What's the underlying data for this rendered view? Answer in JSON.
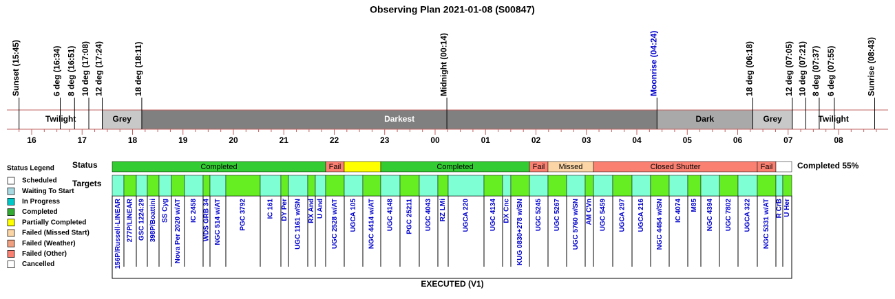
{
  "header": {
    "title": "Observing Plan 2021-01-08 (S00847)"
  },
  "events": [
    {
      "label": "Sunset (15:45)"
    },
    {
      "label": "6 deg (16:34)"
    },
    {
      "label": "8 deg (16:51)"
    },
    {
      "label": "10 deg (17:08)"
    },
    {
      "label": "12 deg (17:24)"
    },
    {
      "label": "18 deg (18:11)"
    },
    {
      "label": "Midnight (00:14)"
    },
    {
      "label": "Moonrise (04:24)",
      "color": "#0000cc"
    },
    {
      "label": "18 deg (06:18)"
    },
    {
      "label": "12 deg (07:05)"
    },
    {
      "label": "10 deg (07:21)"
    },
    {
      "label": "8 deg (07:37)"
    },
    {
      "label": "6 deg (07:55)"
    },
    {
      "label": "Sunrise (08:43)"
    }
  ],
  "phases": [
    {
      "label": "Twilight",
      "color": "#ffffff",
      "text_color": "#000000"
    },
    {
      "label": "Grey",
      "color": "#c8c8c8",
      "text_color": "#000000"
    },
    {
      "label": "Darkest",
      "color": "#808080",
      "text_color": "#ffffff"
    },
    {
      "label": "Dark",
      "color": "#a9a9a9",
      "text_color": "#000000"
    },
    {
      "label": "Grey",
      "color": "#c8c8c8",
      "text_color": "#000000"
    },
    {
      "label": "Twilight",
      "color": "#ffffff",
      "text_color": "#000000"
    }
  ],
  "hours": [
    "16",
    "17",
    "18",
    "19",
    "20",
    "21",
    "22",
    "23",
    "00",
    "01",
    "02",
    "03",
    "04",
    "05",
    "06",
    "07",
    "08"
  ],
  "status_row": {
    "label": "Status",
    "summary": "Completed 55%",
    "segments": [
      {
        "label": "Completed",
        "color": "#33cc33"
      },
      {
        "label": "Fail",
        "color": "#fa8072"
      },
      {
        "label": null,
        "color": "#ffff00"
      },
      {
        "label": "Completed",
        "color": "#33cc33"
      },
      {
        "label": "Fail",
        "color": "#fa8072"
      },
      {
        "label": "Missed",
        "color": "#fbd5a5"
      },
      {
        "label": "Closed Shutter",
        "color": "#fa8072"
      },
      {
        "label": "Fail",
        "color": "#fa8072"
      },
      {
        "label": null,
        "color": "#ffffff"
      }
    ]
  },
  "targets_row": {
    "label": "Targets",
    "names": [
      "156P/Russell-LINEAR",
      "277P/LINEAR",
      "GSC 1224:29",
      "398P/Boattini",
      "SS Cyg",
      "Nova Per 2020 w/AT",
      "IC 2458",
      "WDS GRB 34",
      "NGC 514 w/AT",
      "PGC 3792",
      "IC 161",
      "DY Per",
      "UGC 1161 w/SN",
      "RX And",
      "U And",
      "UGC 2528 w/AT",
      "UGCA 105",
      "NGC 4414 w/AT",
      "UGC 4148",
      "PGC 25211",
      "UGC 4043",
      "RZ LMi",
      "UGCA 220",
      "UGC 4134",
      "DX Cnc",
      "KUG 0830+278 w/SN",
      "UGC 5245",
      "UGC 5267",
      "UGC 5760 w/SN",
      "AM CVn",
      "UGC 5459",
      "UGCA 297",
      "UGCA 216",
      "NGC 4454 w/SN",
      "IC 4074",
      "M85",
      "NGC 4394",
      "UGC 7802",
      "UGCA 322",
      "NGC 5331 w/AT",
      "R CrB",
      "U Her"
    ]
  },
  "legend": {
    "title": "Status Legend",
    "items": [
      {
        "label": "Scheduled",
        "color": "#ffffff"
      },
      {
        "label": "Waiting To Start",
        "color": "#a8d8e0"
      },
      {
        "label": "In Progress",
        "color": "#00c8c8"
      },
      {
        "label": "Completed",
        "color": "#33aa33"
      },
      {
        "label": "Partially Completed",
        "color": "#ffff00"
      },
      {
        "label": "Failed (Missed Start)",
        "color": "#fbd5a5"
      },
      {
        "label": "Failed (Weather)",
        "color": "#f0a080"
      },
      {
        "label": "Failed (Other)",
        "color": "#fa8072"
      },
      {
        "label": "Cancelled",
        "color": "#ffffff"
      }
    ]
  },
  "footer": {
    "label": "EXECUTED (V1)"
  }
}
